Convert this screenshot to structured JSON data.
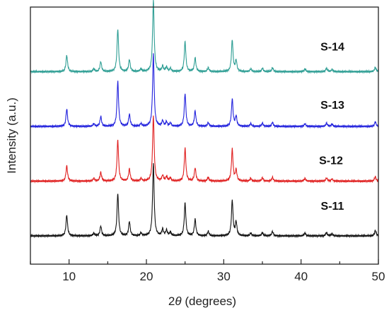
{
  "chart_data": {
    "type": "line",
    "xlabel_prefix": "2",
    "xlabel_symbol": "θ",
    "xlabel_suffix": " (degrees)",
    "ylabel": "Intensity (a.u.)",
    "xlim": [
      5,
      50
    ],
    "xticks": [
      10,
      20,
      30,
      40,
      50
    ],
    "grid": false,
    "series": [
      {
        "name": "S-14",
        "color": "#2e9e94",
        "baseline": 3.0,
        "peaks": [
          [
            9.7,
            0.3
          ],
          [
            13.2,
            0.05
          ],
          [
            14.1,
            0.18
          ],
          [
            16.3,
            0.78
          ],
          [
            17.8,
            0.22
          ],
          [
            19.3,
            0.05
          ],
          [
            20.9,
            1.3
          ],
          [
            22.1,
            0.1
          ],
          [
            22.6,
            0.08
          ],
          [
            23.1,
            0.06
          ],
          [
            25.0,
            0.55
          ],
          [
            26.3,
            0.25
          ],
          [
            28.0,
            0.07
          ],
          [
            31.1,
            0.58
          ],
          [
            31.6,
            0.2
          ],
          [
            33.5,
            0.05
          ],
          [
            35.0,
            0.06
          ],
          [
            36.3,
            0.07
          ],
          [
            40.5,
            0.05
          ],
          [
            43.3,
            0.06
          ],
          [
            44.0,
            0.04
          ],
          [
            49.6,
            0.08
          ]
        ]
      },
      {
        "name": "S-13",
        "color": "#2222dd",
        "baseline": 2.0,
        "peaks": [
          [
            9.7,
            0.32
          ],
          [
            13.2,
            0.05
          ],
          [
            14.1,
            0.18
          ],
          [
            16.3,
            0.82
          ],
          [
            17.8,
            0.22
          ],
          [
            19.3,
            0.05
          ],
          [
            20.9,
            1.32
          ],
          [
            22.1,
            0.1
          ],
          [
            22.6,
            0.08
          ],
          [
            23.1,
            0.06
          ],
          [
            25.0,
            0.6
          ],
          [
            26.3,
            0.28
          ],
          [
            28.0,
            0.07
          ],
          [
            31.1,
            0.5
          ],
          [
            31.6,
            0.18
          ],
          [
            33.5,
            0.05
          ],
          [
            35.0,
            0.06
          ],
          [
            36.3,
            0.07
          ],
          [
            40.5,
            0.05
          ],
          [
            43.3,
            0.06
          ],
          [
            44.0,
            0.04
          ],
          [
            49.6,
            0.08
          ]
        ]
      },
      {
        "name": "S-12",
        "color": "#e02020",
        "baseline": 1.0,
        "peaks": [
          [
            9.7,
            0.28
          ],
          [
            13.2,
            0.05
          ],
          [
            14.1,
            0.16
          ],
          [
            16.3,
            0.75
          ],
          [
            17.8,
            0.22
          ],
          [
            19.3,
            0.05
          ],
          [
            20.9,
            1.2
          ],
          [
            22.1,
            0.1
          ],
          [
            22.6,
            0.08
          ],
          [
            23.1,
            0.06
          ],
          [
            25.0,
            0.6
          ],
          [
            26.3,
            0.24
          ],
          [
            28.0,
            0.07
          ],
          [
            31.1,
            0.58
          ],
          [
            31.6,
            0.2
          ],
          [
            33.5,
            0.05
          ],
          [
            35.0,
            0.06
          ],
          [
            36.3,
            0.07
          ],
          [
            40.5,
            0.05
          ],
          [
            43.3,
            0.06
          ],
          [
            44.0,
            0.04
          ],
          [
            49.6,
            0.08
          ]
        ]
      },
      {
        "name": "S-11",
        "color": "#111111",
        "baseline": 0.0,
        "peaks": [
          [
            9.7,
            0.38
          ],
          [
            13.2,
            0.05
          ],
          [
            14.1,
            0.18
          ],
          [
            16.3,
            0.78
          ],
          [
            17.8,
            0.26
          ],
          [
            19.3,
            0.05
          ],
          [
            20.9,
            1.32
          ],
          [
            22.1,
            0.12
          ],
          [
            22.6,
            0.1
          ],
          [
            23.1,
            0.07
          ],
          [
            25.0,
            0.6
          ],
          [
            26.3,
            0.3
          ],
          [
            28.0,
            0.08
          ],
          [
            31.1,
            0.65
          ],
          [
            31.6,
            0.25
          ],
          [
            33.5,
            0.05
          ],
          [
            35.0,
            0.06
          ],
          [
            36.3,
            0.08
          ],
          [
            40.5,
            0.05
          ],
          [
            43.3,
            0.06
          ],
          [
            44.0,
            0.04
          ],
          [
            49.6,
            0.1
          ]
        ]
      }
    ]
  }
}
